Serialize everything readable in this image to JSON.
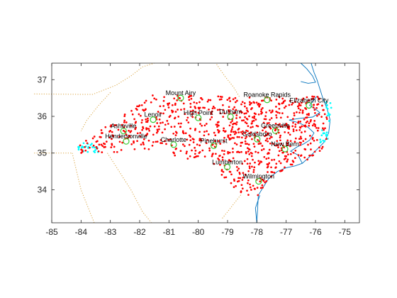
{
  "chart_data": {
    "type": "scatter",
    "title": "",
    "xlabel": "",
    "ylabel": "",
    "xlim": [
      -85,
      -74.5
    ],
    "ylim": [
      33.1,
      37.45
    ],
    "xticks": [
      -85,
      -84,
      -83,
      -82,
      -81,
      -80,
      -79,
      -78,
      -77,
      -76,
      -75
    ],
    "yticks": [
      34,
      35,
      36,
      37
    ],
    "grid": false,
    "colors": {
      "points_inside": "#ff0000",
      "points_outside": "#00ffff",
      "city_markers": "#33cc33",
      "coastline": "#0072bd",
      "state_borders": "#d9a441",
      "axes": "#262626"
    },
    "cities": [
      {
        "name": "Mount Airy",
        "lon": -80.6,
        "lat": 36.5
      },
      {
        "name": "Roanoke Rapids",
        "lon": -77.65,
        "lat": 36.45
      },
      {
        "name": "Elizabeth City",
        "lon": -76.22,
        "lat": 36.3
      },
      {
        "name": "Lenoir",
        "lon": -81.54,
        "lat": 35.91
      },
      {
        "name": "High Point",
        "lon": -80.0,
        "lat": 35.96
      },
      {
        "name": "Durham",
        "lon": -78.9,
        "lat": 35.99
      },
      {
        "name": "Asheville",
        "lon": -82.55,
        "lat": 35.6
      },
      {
        "name": "Greenville",
        "lon": -77.37,
        "lat": 35.61
      },
      {
        "name": "Hendersonville",
        "lon": -82.46,
        "lat": 35.32
      },
      {
        "name": "Goldsboro",
        "lon": -77.99,
        "lat": 35.38
      },
      {
        "name": "Charlotte",
        "lon": -80.84,
        "lat": 35.23
      },
      {
        "name": "Pinehurst",
        "lon": -79.47,
        "lat": 35.2
      },
      {
        "name": "New Bern",
        "lon": -77.04,
        "lat": 35.11
      },
      {
        "name": "Lumberton",
        "lon": -79.01,
        "lat": 34.62
      },
      {
        "name": "Wilmington",
        "lon": -77.94,
        "lat": 34.23
      }
    ]
  }
}
